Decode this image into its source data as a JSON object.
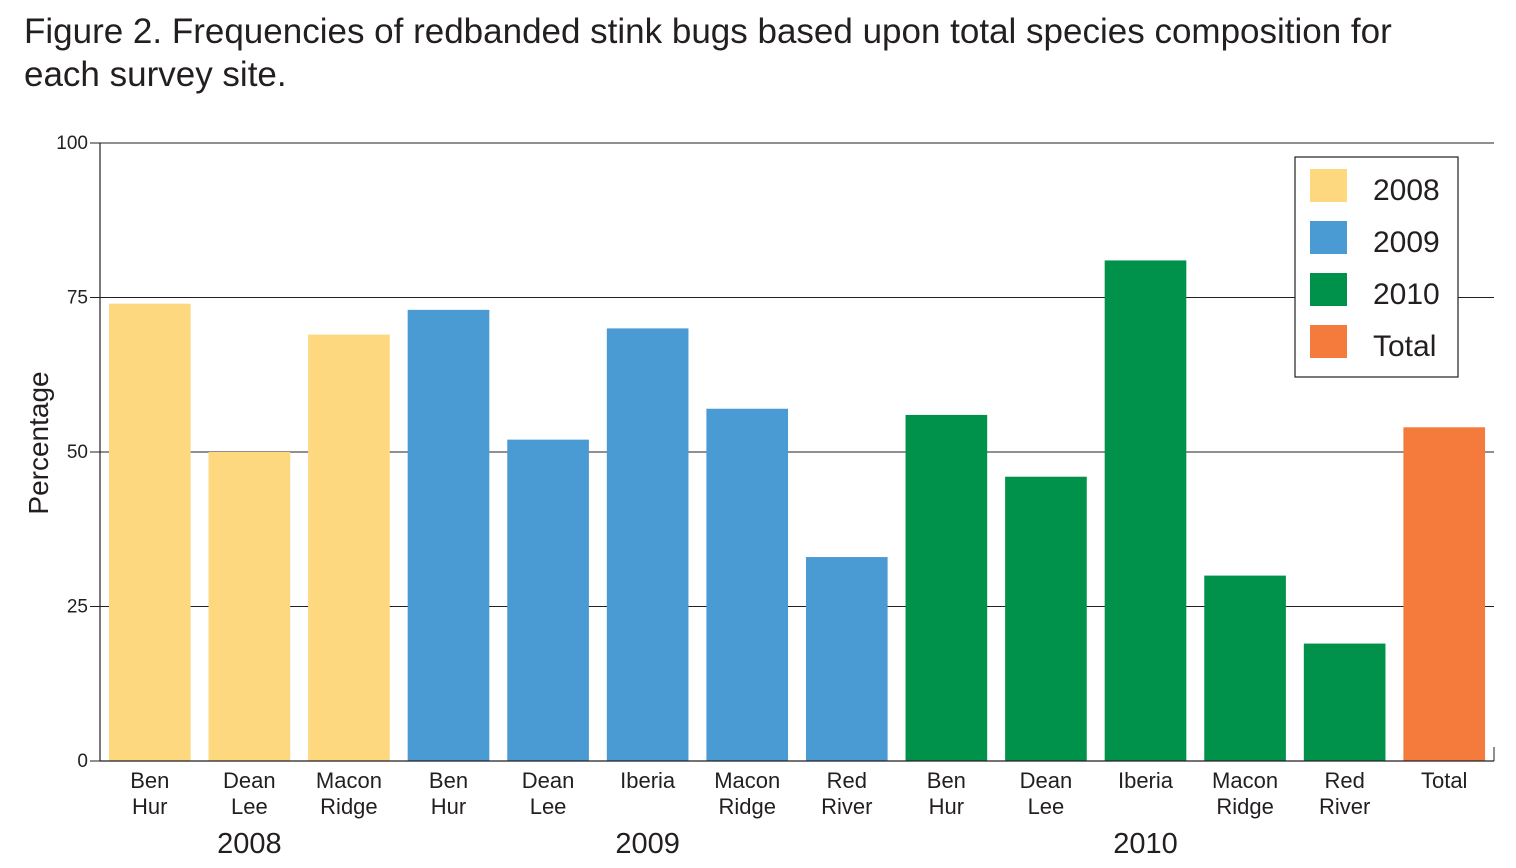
{
  "title": "Figure 2. Frequencies of redbanded stink bugs based upon total species composition for\neach survey site.",
  "chart_data": {
    "type": "bar",
    "ylabel": "Percentage",
    "xlabel": "",
    "ylim": [
      0,
      100
    ],
    "yticks": [
      "0",
      "25",
      "50",
      "75",
      "100"
    ],
    "grid": true,
    "legend_position": "top-right",
    "legend": [
      {
        "label": "2008",
        "color": "#fdd87f"
      },
      {
        "label": "2009",
        "color": "#4a9ad3"
      },
      {
        "label": "2010",
        "color": "#00924b"
      },
      {
        "label": "Total",
        "color": "#f47b3c"
      }
    ],
    "bars": [
      {
        "label": [
          "Ben",
          "Hur"
        ],
        "value": 74,
        "series": 0
      },
      {
        "label": [
          "Dean",
          "Lee"
        ],
        "value": 50,
        "series": 0
      },
      {
        "label": [
          "Macon",
          "Ridge"
        ],
        "value": 69,
        "series": 0
      },
      {
        "label": [
          "Ben",
          "Hur"
        ],
        "value": 73,
        "series": 1
      },
      {
        "label": [
          "Dean",
          "Lee"
        ],
        "value": 52,
        "series": 1
      },
      {
        "label": [
          "Iberia"
        ],
        "value": 70,
        "series": 1
      },
      {
        "label": [
          "Macon",
          "Ridge"
        ],
        "value": 57,
        "series": 1
      },
      {
        "label": [
          "Red",
          "River"
        ],
        "value": 33,
        "series": 1
      },
      {
        "label": [
          "Ben",
          "Hur"
        ],
        "value": 56,
        "series": 2
      },
      {
        "label": [
          "Dean",
          "Lee"
        ],
        "value": 46,
        "series": 2
      },
      {
        "label": [
          "Iberia"
        ],
        "value": 81,
        "series": 2
      },
      {
        "label": [
          "Macon",
          "Ridge"
        ],
        "value": 30,
        "series": 2
      },
      {
        "label": [
          "Red",
          "River"
        ],
        "value": 19,
        "series": 2
      },
      {
        "label": [
          "Total"
        ],
        "value": 54,
        "series": 3
      }
    ],
    "groups": [
      {
        "label": "2008",
        "first": 0,
        "last": 2
      },
      {
        "label": "2009",
        "first": 3,
        "last": 7
      },
      {
        "label": "2010",
        "first": 8,
        "last": 12
      }
    ]
  }
}
